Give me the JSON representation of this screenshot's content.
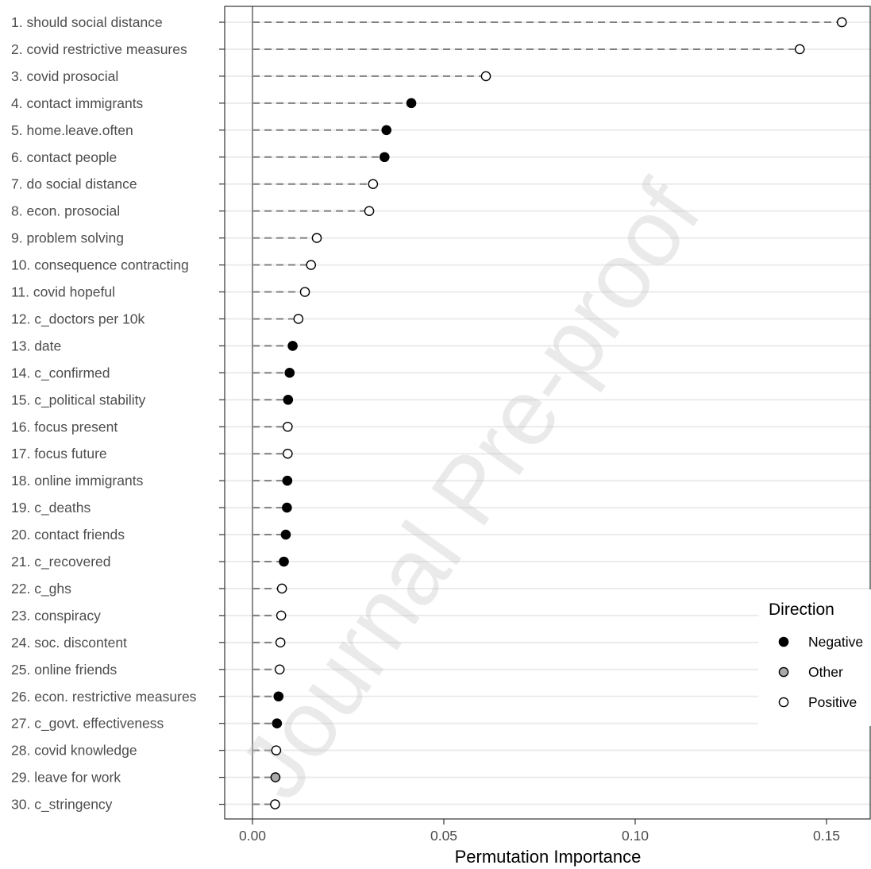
{
  "watermark": "Journal Pre-proof",
  "chart_data": {
    "type": "scatter",
    "subtype": "lollipop",
    "title": "",
    "xlabel": "Permutation Importance",
    "ylabel": "",
    "xlim": [
      -0.0075,
      0.1625
    ],
    "x_ticks": [
      0.0,
      0.05,
      0.1,
      0.15
    ],
    "x_tick_labels": [
      "0.00",
      "0.05",
      "0.10",
      "0.15"
    ],
    "grid": "horizontal",
    "legend": {
      "title": "Direction",
      "placement": "right",
      "items": [
        {
          "label": "Negative",
          "color": "#000000"
        },
        {
          "label": "Other",
          "color": "#aaaaaa"
        },
        {
          "label": "Positive",
          "color": "#ffffff"
        }
      ]
    },
    "items": [
      {
        "label": "1. should social distance",
        "value": 0.154,
        "direction": "Positive"
      },
      {
        "label": "2. covid restrictive measures",
        "value": 0.143,
        "direction": "Positive"
      },
      {
        "label": "3. covid prosocial",
        "value": 0.061,
        "direction": "Positive"
      },
      {
        "label": "4. contact immigrants",
        "value": 0.0415,
        "direction": "Negative"
      },
      {
        "label": "5. home.leave.often",
        "value": 0.035,
        "direction": "Negative"
      },
      {
        "label": "6. contact people",
        "value": 0.0345,
        "direction": "Negative"
      },
      {
        "label": "7. do social distance",
        "value": 0.0315,
        "direction": "Positive"
      },
      {
        "label": "8. econ. prosocial",
        "value": 0.0305,
        "direction": "Positive"
      },
      {
        "label": "9. problem solving",
        "value": 0.0168,
        "direction": "Positive"
      },
      {
        "label": "10. consequence contracting",
        "value": 0.0153,
        "direction": "Positive"
      },
      {
        "label": "11. covid hopeful",
        "value": 0.0137,
        "direction": "Positive"
      },
      {
        "label": "12. c_doctors per 10k",
        "value": 0.012,
        "direction": "Positive"
      },
      {
        "label": "13. date",
        "value": 0.0105,
        "direction": "Negative"
      },
      {
        "label": "14. c_confirmed",
        "value": 0.0097,
        "direction": "Negative"
      },
      {
        "label": "15. c_political stability",
        "value": 0.0093,
        "direction": "Negative"
      },
      {
        "label": "16. focus present",
        "value": 0.0092,
        "direction": "Positive"
      },
      {
        "label": "17. focus future",
        "value": 0.0092,
        "direction": "Positive"
      },
      {
        "label": "18. online immigrants",
        "value": 0.0091,
        "direction": "Negative"
      },
      {
        "label": "19. c_deaths",
        "value": 0.009,
        "direction": "Negative"
      },
      {
        "label": "20. contact friends",
        "value": 0.0087,
        "direction": "Negative"
      },
      {
        "label": "21. c_recovered",
        "value": 0.0082,
        "direction": "Negative"
      },
      {
        "label": "22. c_ghs",
        "value": 0.0077,
        "direction": "Positive"
      },
      {
        "label": "23. conspiracy",
        "value": 0.0075,
        "direction": "Positive"
      },
      {
        "label": "24. soc. discontent",
        "value": 0.0073,
        "direction": "Positive"
      },
      {
        "label": "25. online friends",
        "value": 0.0071,
        "direction": "Positive"
      },
      {
        "label": "26. econ. restrictive measures",
        "value": 0.0068,
        "direction": "Negative"
      },
      {
        "label": "27. c_govt. effectiveness",
        "value": 0.0064,
        "direction": "Negative"
      },
      {
        "label": "28. covid knowledge",
        "value": 0.0062,
        "direction": "Positive"
      },
      {
        "label": "29. leave for work",
        "value": 0.006,
        "direction": "Other"
      },
      {
        "label": "30. c_stringency",
        "value": 0.0059,
        "direction": "Positive"
      }
    ]
  }
}
